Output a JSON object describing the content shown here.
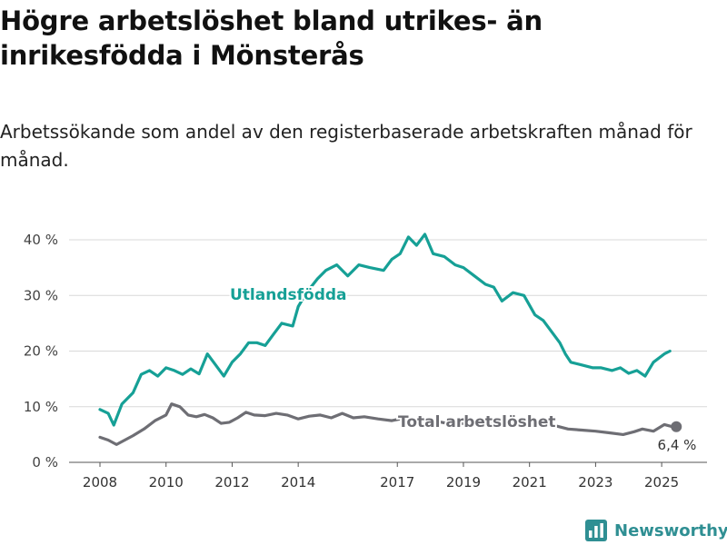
{
  "colors": {
    "foreign_born": "#16a096",
    "total": "#6e6e74",
    "brand": "#2f8f93",
    "grid": "#d9d9d9"
  },
  "chart_data": {
    "type": "line",
    "title": "Högre arbetslöshet bland utrikes- än inrikesfödda i Mönsterås",
    "subtitle": "Arbetssökande som andel av den registerbaserade arbetskraften månad för månad.",
    "xlabel": "",
    "ylabel": "",
    "x_ticks": [
      "2008",
      "2010",
      "2012",
      "2014",
      "2017",
      "2019",
      "2021",
      "2023",
      "2025"
    ],
    "y_ticks": [
      "0 %",
      "10 %",
      "20 %",
      "30 %",
      "40 %"
    ],
    "ylim": [
      0,
      42
    ],
    "grid": "horizontal",
    "end_label": "6,4 %",
    "series": [
      {
        "name": "Utlandsfödda",
        "color": "#16a096",
        "x": [
          "2008-01",
          "2008-04",
          "2008-06",
          "2008-09",
          "2009-01",
          "2009-04",
          "2009-07",
          "2009-10",
          "2010-01",
          "2010-04",
          "2010-07",
          "2010-10",
          "2011-01",
          "2011-04",
          "2011-07",
          "2011-10",
          "2012-01",
          "2012-04",
          "2012-07",
          "2012-10",
          "2013-01",
          "2013-04",
          "2013-07",
          "2013-11",
          "2014-01",
          "2014-04",
          "2014-08",
          "2014-11",
          "2015-03",
          "2015-07",
          "2015-11",
          "2016-03",
          "2016-08",
          "2016-11",
          "2017-02",
          "2017-05",
          "2017-08",
          "2017-11",
          "2018-02",
          "2018-06",
          "2018-10",
          "2019-01",
          "2019-05",
          "2019-09",
          "2019-12",
          "2020-03",
          "2020-07",
          "2020-11",
          "2021-03",
          "2021-06",
          "2021-09",
          "2021-12",
          "2022-02",
          "2022-04",
          "2022-08",
          "2022-12",
          "2023-03",
          "2023-07",
          "2023-10",
          "2024-01",
          "2024-04",
          "2024-07",
          "2024-10",
          "2025-02",
          "2025-04"
        ],
        "values": [
          9.5,
          8.8,
          6.7,
          10.5,
          12.5,
          15.8,
          16.5,
          15.5,
          17.0,
          16.5,
          15.8,
          16.8,
          15.9,
          19.5,
          17.5,
          15.5,
          18.0,
          19.5,
          21.5,
          21.5,
          21.0,
          23.0,
          25.0,
          24.5,
          28.0,
          30.5,
          33.0,
          34.5,
          35.5,
          33.5,
          35.5,
          35.0,
          34.5,
          36.5,
          37.5,
          40.5,
          39.0,
          41.0,
          37.5,
          37.0,
          35.5,
          35.0,
          33.5,
          32.0,
          31.5,
          29.0,
          30.5,
          30.0,
          26.5,
          25.5,
          23.5,
          21.5,
          19.5,
          18.0,
          17.5,
          17.0,
          17.0,
          16.5,
          17.0,
          16.0,
          16.5,
          15.5,
          18.0,
          19.5,
          20.0
        ]
      },
      {
        "name": "Total arbetslöshet",
        "color": "#6e6e74",
        "x": [
          "2008-01",
          "2008-04",
          "2008-07",
          "2008-10",
          "2009-01",
          "2009-05",
          "2009-09",
          "2010-01",
          "2010-03",
          "2010-06",
          "2010-09",
          "2010-12",
          "2011-03",
          "2011-06",
          "2011-09",
          "2011-12",
          "2012-03",
          "2012-06",
          "2012-09",
          "2013-01",
          "2013-05",
          "2013-09",
          "2014-01",
          "2014-05",
          "2014-09",
          "2015-01",
          "2015-05",
          "2015-09",
          "2016-01",
          "2016-06",
          "2016-11",
          "2017-04",
          "2017-09",
          "2018-02",
          "2018-07",
          "2018-12",
          "2019-05",
          "2019-10",
          "2020-03",
          "2020-08",
          "2021-01",
          "2021-06",
          "2021-11",
          "2022-03",
          "2022-08",
          "2023-01",
          "2023-06",
          "2023-11",
          "2024-03",
          "2024-06",
          "2024-10",
          "2025-02",
          "2025-05"
        ],
        "values": [
          4.5,
          4.0,
          3.2,
          4.0,
          4.8,
          6.0,
          7.5,
          8.5,
          10.5,
          10.0,
          8.5,
          8.2,
          8.6,
          8.0,
          7.0,
          7.2,
          8.0,
          9.0,
          8.5,
          8.4,
          8.8,
          8.5,
          7.8,
          8.3,
          8.5,
          8.0,
          8.8,
          8.0,
          8.2,
          7.8,
          7.5,
          8.0,
          7.5,
          7.5,
          7.0,
          7.0,
          6.8,
          6.8,
          7.0,
          7.0,
          7.0,
          6.8,
          6.5,
          6.0,
          5.8,
          5.6,
          5.3,
          5.0,
          5.5,
          6.0,
          5.6,
          6.8,
          6.4
        ]
      }
    ]
  },
  "branding": {
    "name": "Newsworthy",
    "logo_icon": "bar-chart-logo-icon"
  }
}
